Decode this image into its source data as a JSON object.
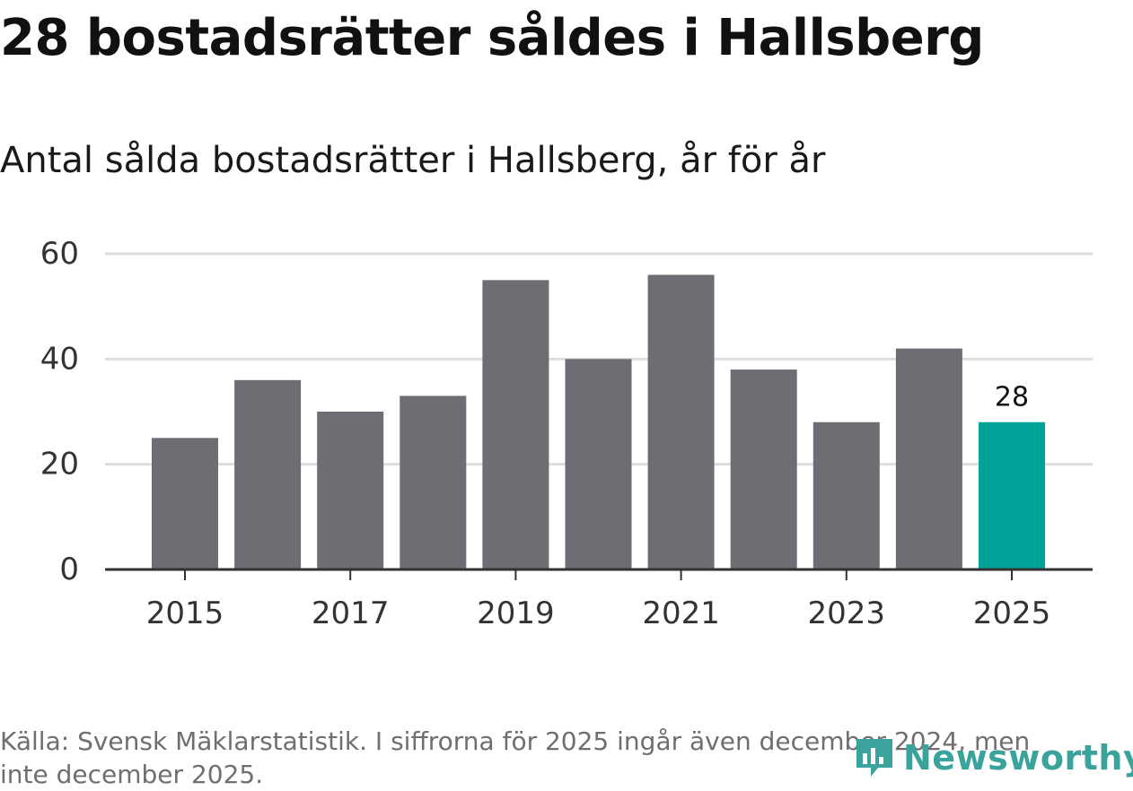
{
  "chart_data": {
    "type": "bar",
    "title": "28 bostadsrätter såldes i Hallsberg",
    "subtitle": "Antal sålda bostadsrätter i Hallsberg, år för år",
    "categories": [
      "2015",
      "2016",
      "2017",
      "2018",
      "2019",
      "2020",
      "2021",
      "2022",
      "2023",
      "2024",
      "2025"
    ],
    "values": [
      25,
      36,
      30,
      33,
      55,
      40,
      56,
      38,
      28,
      42,
      28
    ],
    "x_tick_labels": [
      "2015",
      "2017",
      "2019",
      "2021",
      "2023",
      "2025"
    ],
    "y_ticks": [
      0,
      20,
      40,
      60
    ],
    "ylim": [
      0,
      60
    ],
    "xlabel": "",
    "ylabel": "",
    "grid": true,
    "highlight_category": "2025",
    "highlight_label": "28",
    "colors": {
      "bar": "#6e6d73",
      "highlight": "#00a39a",
      "grid": "#dddddd",
      "axis": "#333333"
    }
  },
  "footer": {
    "source": "Källa: Svensk Mäklarstatistik. I siffrorna för 2025 ingår även december 2024, men inte december 2025."
  },
  "logo": {
    "text": "Newsworthy",
    "icon": "newsworthy-logo-icon",
    "color": "#3aa39b"
  }
}
